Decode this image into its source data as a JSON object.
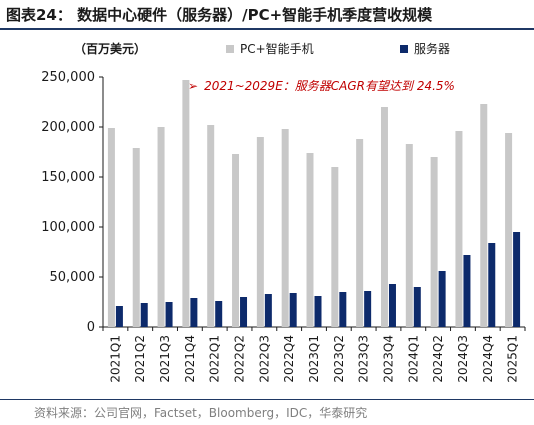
{
  "header": {
    "title": "图表24： 数据中心硬件（服务器）/PC+智能手机季度营收规模"
  },
  "footer": {
    "source": "资料来源：公司官网，Factset，Bloomberg，IDC，华泰研究"
  },
  "colors": {
    "pc_series": "#c8c8c8",
    "server_series": "#0d2a6b",
    "annotation": "#c00000",
    "rule": "#1f3864"
  },
  "chart_data": {
    "type": "bar",
    "unit_label": "（百万美元）",
    "annotation": "2021~2029E：服务器CAGR有望达到 24.5%",
    "categories": [
      "2021Q1",
      "2021Q2",
      "2021Q3",
      "2021Q4",
      "2022Q1",
      "2022Q2",
      "2022Q3",
      "2022Q4",
      "2023Q1",
      "2023Q2",
      "2023Q3",
      "2023Q4",
      "2024Q1",
      "2024Q2",
      "2024Q3",
      "2024Q4",
      "2025Q1"
    ],
    "series": [
      {
        "name": "PC+智能手机",
        "values": [
          199000,
          179000,
          200000,
          247000,
          202000,
          173000,
          190000,
          198000,
          174000,
          160000,
          188000,
          220000,
          183000,
          170000,
          196000,
          223000,
          194000
        ]
      },
      {
        "name": "服务器",
        "values": [
          21000,
          24000,
          25000,
          29000,
          26000,
          30000,
          33000,
          34000,
          31000,
          35000,
          36000,
          43000,
          40000,
          56000,
          72000,
          84000,
          95000
        ]
      }
    ],
    "ylim": [
      0,
      250000
    ],
    "yticks": [
      "0",
      "50,000",
      "100,000",
      "150,000",
      "200,000",
      "250,000"
    ],
    "legend_position": "top",
    "grid": false
  }
}
